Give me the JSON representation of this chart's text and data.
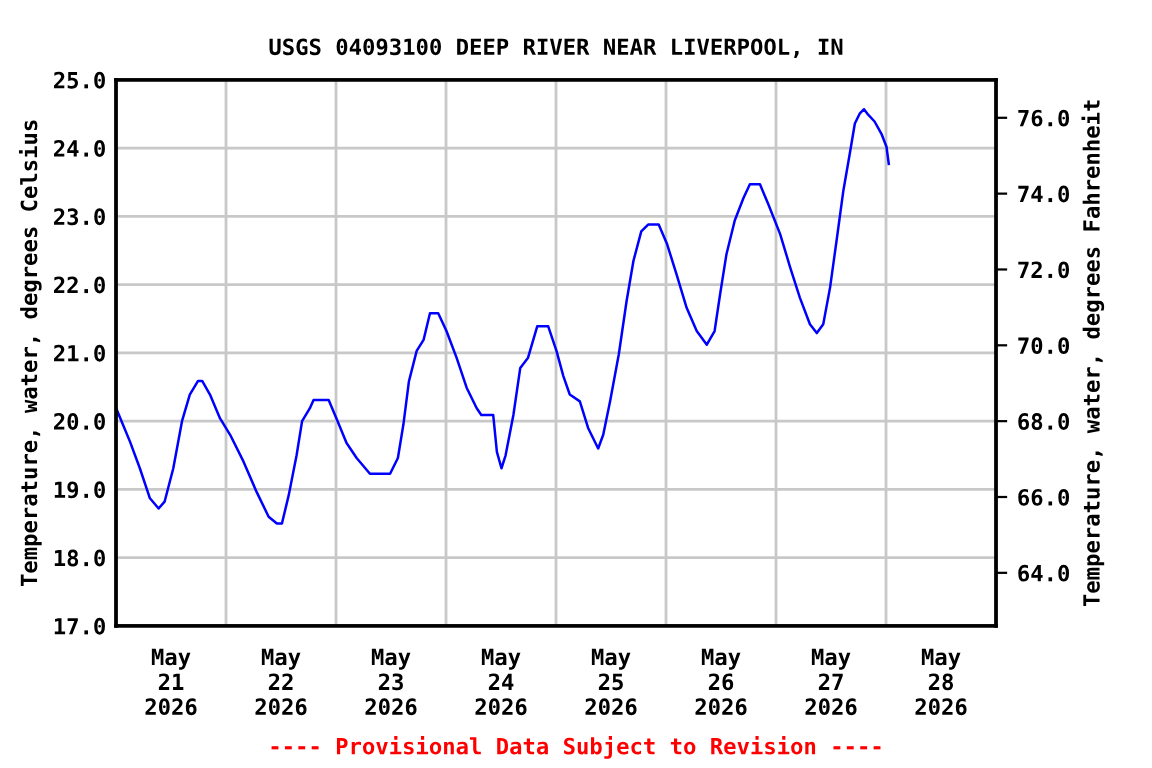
{
  "chart_data": {
    "type": "line",
    "title": "USGS 04093100 DEEP RIVER NEAR LIVERPOOL, IN",
    "ylabel": "Temperature, water, degrees Celsius",
    "y2label": "Temperature, water, degrees Fahrenheit",
    "annotations": [
      "---- Provisional Data Subject to Revision ----"
    ],
    "x": [
      "2026-05-21T00:09",
      "2026-05-21T03:03",
      "2026-05-21T05:12",
      "2026-05-21T07:24",
      "2026-05-21T09:18",
      "2026-05-21T10:36",
      "2026-05-21T12:30",
      "2026-05-21T14:24",
      "2026-05-21T16:06",
      "2026-05-21T17:54",
      "2026-05-21T18:48",
      "2026-05-21T20:30",
      "2026-05-21T22:42",
      "2026-05-22T00:54",
      "2026-05-22T03:48",
      "2026-05-22T06:42",
      "2026-05-22T09:18",
      "2026-05-22T11:06",
      "2026-05-22T12:12",
      "2026-05-22T13:42",
      "2026-05-22T15:24",
      "2026-05-22T16:36",
      "2026-05-22T18:18",
      "2026-05-22T19:06",
      "2026-05-22T22:24",
      "2026-05-23T00:06",
      "2026-05-23T02:18",
      "2026-05-23T04:30",
      "2026-05-23T07:24",
      "2026-05-23T11:48",
      "2026-05-23T13:30",
      "2026-05-23T14:42",
      "2026-05-23T15:54",
      "2026-05-23T17:36",
      "2026-05-23T19:06",
      "2026-05-23T20:30",
      "2026-05-23T22:18",
      "2026-05-24T00:06",
      "2026-05-24T02:18",
      "2026-05-24T04:30",
      "2026-05-24T06:42",
      "2026-05-24T07:42",
      "2026-05-24T10:18",
      "2026-05-24T11:06",
      "2026-05-24T12:06",
      "2026-05-24T13:00",
      "2026-05-24T14:42",
      "2026-05-24T16:12",
      "2026-05-24T17:54",
      "2026-05-24T19:54",
      "2026-05-24T22:18",
      "2026-05-25T00:06",
      "2026-05-25T01:36",
      "2026-05-25T03:00",
      "2026-05-25T05:12",
      "2026-05-25T07:00",
      "2026-05-25T09:12",
      "2026-05-25T10:18",
      "2026-05-25T11:48",
      "2026-05-25T13:42",
      "2026-05-25T15:24",
      "2026-05-25T16:54",
      "2026-05-25T18:36",
      "2026-05-25T20:06",
      "2026-05-25T22:24",
      "2026-05-26T00:12",
      "2026-05-26T02:18",
      "2026-05-26T04:30",
      "2026-05-26T06:42",
      "2026-05-26T08:54",
      "2026-05-26T10:36",
      "2026-05-26T11:48",
      "2026-05-26T13:12",
      "2026-05-26T15:00",
      "2026-05-26T16:54",
      "2026-05-26T18:18",
      "2026-05-26T20:30",
      "2026-05-26T22:18",
      "2026-05-27T00:54",
      "2026-05-27T03:06",
      "2026-05-27T05:12",
      "2026-05-27T07:24",
      "2026-05-27T08:54",
      "2026-05-27T10:18",
      "2026-05-27T11:48",
      "2026-05-27T13:12",
      "2026-05-27T14:42",
      "2026-05-27T16:06",
      "2026-05-27T17:12",
      "2026-05-27T18:18",
      "2026-05-27T19:12",
      "2026-05-27T20:06",
      "2026-05-27T21:30",
      "2026-05-27T23:00",
      "2026-05-28T00:06",
      "2026-05-28T00:36"
    ],
    "series": [
      {
        "color": "#0000ff",
        "values": [
          20.17,
          19.7,
          19.31,
          18.87,
          18.72,
          18.82,
          19.31,
          20.0,
          20.39,
          20.59,
          20.59,
          20.39,
          20.04,
          19.8,
          19.41,
          18.96,
          18.6,
          18.5,
          18.5,
          18.92,
          19.5,
          20.0,
          20.19,
          20.31,
          20.31,
          20.04,
          19.68,
          19.46,
          19.23,
          19.23,
          19.46,
          19.95,
          20.58,
          21.03,
          21.19,
          21.58,
          21.58,
          21.32,
          20.93,
          20.49,
          20.19,
          20.09,
          20.09,
          19.55,
          19.31,
          19.5,
          20.09,
          20.78,
          20.93,
          21.39,
          21.39,
          21.03,
          20.66,
          20.39,
          20.29,
          19.9,
          19.6,
          19.8,
          20.29,
          20.98,
          21.76,
          22.35,
          22.78,
          22.88,
          22.88,
          22.6,
          22.15,
          21.66,
          21.32,
          21.12,
          21.32,
          21.86,
          22.45,
          22.94,
          23.27,
          23.47,
          23.47,
          23.18,
          22.74,
          22.25,
          21.81,
          21.42,
          21.29,
          21.42,
          21.96,
          22.64,
          23.38,
          23.92,
          24.36,
          24.51,
          24.57,
          24.49,
          24.39,
          24.21,
          24.02,
          23.77
        ]
      }
    ],
    "xlim": [
      "2026-05-21T00:00",
      "2026-05-29T00:00"
    ],
    "xticks": [
      {
        "value": "2026-05-21T00:00",
        "label": null
      },
      {
        "value": "2026-05-22T00:00",
        "label": null
      },
      {
        "value": "2026-05-23T00:00",
        "label": null
      },
      {
        "value": "2026-05-24T00:00",
        "label": null
      },
      {
        "value": "2026-05-25T00:00",
        "label": null
      },
      {
        "value": "2026-05-26T00:00",
        "label": null
      },
      {
        "value": "2026-05-27T00:00",
        "label": null
      },
      {
        "value": "2026-05-28T00:00",
        "label": null
      },
      {
        "value": "2026-05-21T12:00",
        "label": "May\n21\n2026"
      },
      {
        "value": "2026-05-22T12:00",
        "label": "May\n22\n2026"
      },
      {
        "value": "2026-05-23T12:00",
        "label": "May\n23\n2026"
      },
      {
        "value": "2026-05-24T12:00",
        "label": "May\n24\n2026"
      },
      {
        "value": "2026-05-25T12:00",
        "label": "May\n25\n2026"
      },
      {
        "value": "2026-05-26T12:00",
        "label": "May\n26\n2026"
      },
      {
        "value": "2026-05-27T12:00",
        "label": "May\n27\n2026"
      },
      {
        "value": "2026-05-28T12:00",
        "label": "May\n28\n2026"
      }
    ],
    "ylim": [
      17.0,
      25.0
    ],
    "yticks": [
      {
        "value": 17,
        "label": "17.0"
      },
      {
        "value": 18,
        "label": "18.0"
      },
      {
        "value": 19,
        "label": "19.0"
      },
      {
        "value": 20,
        "label": "20.0"
      },
      {
        "value": 21,
        "label": "21.0"
      },
      {
        "value": 22,
        "label": "22.0"
      },
      {
        "value": 23,
        "label": "23.0"
      },
      {
        "value": 24,
        "label": "24.0"
      },
      {
        "value": 25,
        "label": "25.0"
      }
    ],
    "y2lim": [
      62.6,
      77.0
    ],
    "y2ticks": [
      {
        "value": 64,
        "label": "64.0"
      },
      {
        "value": 66,
        "label": "66.0"
      },
      {
        "value": 68,
        "label": "68.0"
      },
      {
        "value": 70,
        "label": "70.0"
      },
      {
        "value": 72,
        "label": "72.0"
      },
      {
        "value": 74,
        "label": "74.0"
      },
      {
        "value": 76,
        "label": "76.0"
      }
    ],
    "grid": true,
    "legend": false
  }
}
